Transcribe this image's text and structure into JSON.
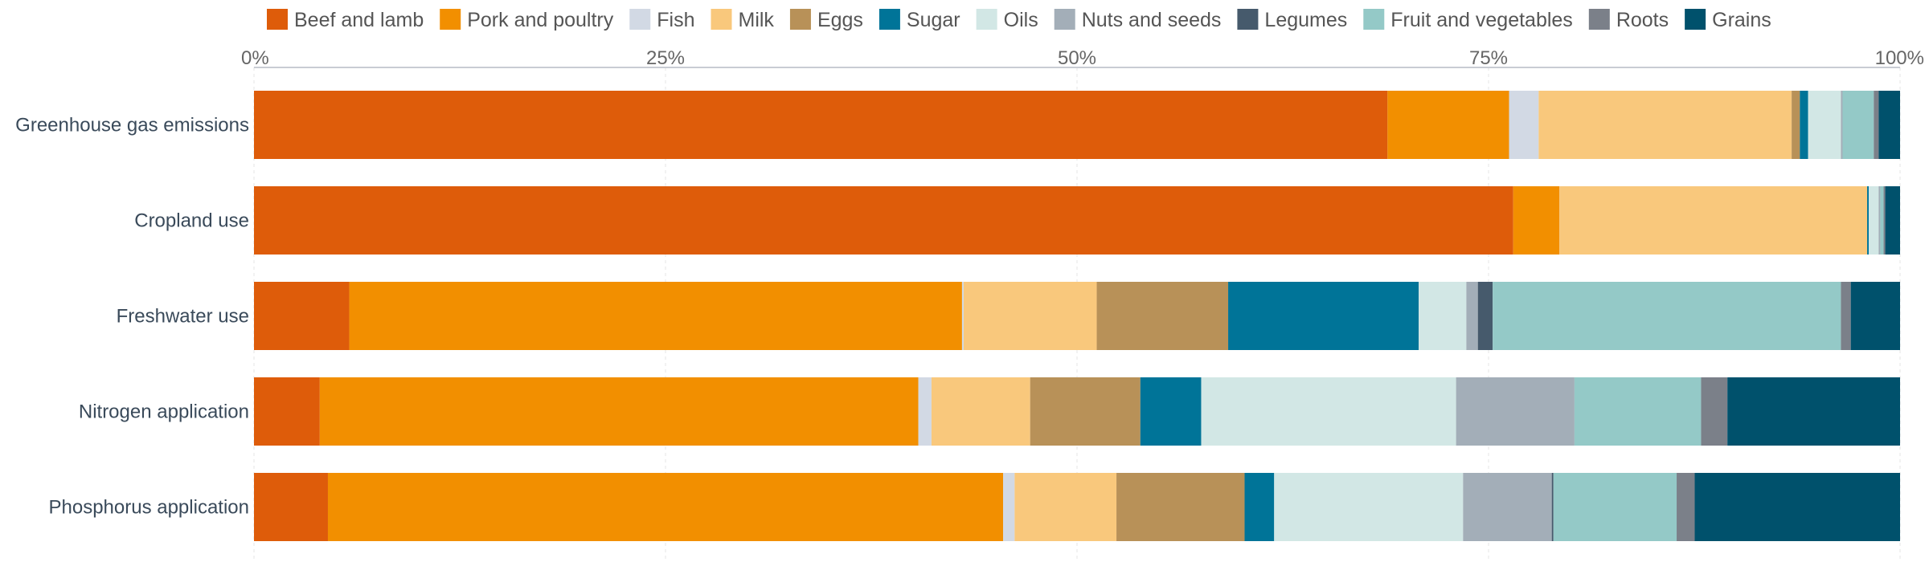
{
  "chart_data": {
    "type": "bar",
    "orientation": "horizontal",
    "stacked": true,
    "normalized": true,
    "legend_position": "top",
    "grid": true,
    "xlim": [
      0,
      100
    ],
    "x_ticks": [
      "0%",
      "25%",
      "50%",
      "75%",
      "100%"
    ],
    "categories": [
      "Greenhouse gas emissions",
      "Cropland use",
      "Freshwater use",
      "Nitrogen application",
      "Phosphorus application"
    ],
    "series": [
      {
        "name": "Beef and lamb",
        "color": "#de5c0a",
        "values": [
          69.0,
          76.5,
          5.8,
          4.0,
          4.5
        ]
      },
      {
        "name": "Pork and poultry",
        "color": "#f28f00",
        "values": [
          7.4,
          2.8,
          37.3,
          36.4,
          41.1
        ]
      },
      {
        "name": "Fish",
        "color": "#d2d9e4",
        "values": [
          1.8,
          0.0,
          0.1,
          0.8,
          0.7
        ]
      },
      {
        "name": "Milk",
        "color": "#f9c87c",
        "values": [
          15.4,
          18.7,
          8.1,
          6.0,
          6.2
        ]
      },
      {
        "name": "Eggs",
        "color": "#b89158",
        "values": [
          0.5,
          0.0,
          8.0,
          6.7,
          7.8
        ]
      },
      {
        "name": "Sugar",
        "color": "#007498",
        "values": [
          0.5,
          0.1,
          11.6,
          3.7,
          1.8
        ]
      },
      {
        "name": "Oils",
        "color": "#d2e7e5",
        "values": [
          2.0,
          0.6,
          2.9,
          15.5,
          11.5
        ]
      },
      {
        "name": "Nuts and seeds",
        "color": "#a3aeb8",
        "values": [
          0.1,
          0.1,
          0.7,
          7.2,
          5.4
        ]
      },
      {
        "name": "Legumes",
        "color": "#465a6c",
        "values": [
          0.0,
          0.0,
          0.9,
          0.0,
          0.1
        ]
      },
      {
        "name": "Fruit and vegetables",
        "color": "#94c9c7",
        "values": [
          1.9,
          0.2,
          21.2,
          7.7,
          7.5
        ]
      },
      {
        "name": "Roots",
        "color": "#7b8089",
        "values": [
          0.3,
          0.1,
          0.6,
          1.6,
          1.1
        ]
      },
      {
        "name": "Grains",
        "color": "#00516c",
        "values": [
          1.3,
          0.9,
          3.0,
          10.5,
          12.5
        ]
      }
    ]
  }
}
